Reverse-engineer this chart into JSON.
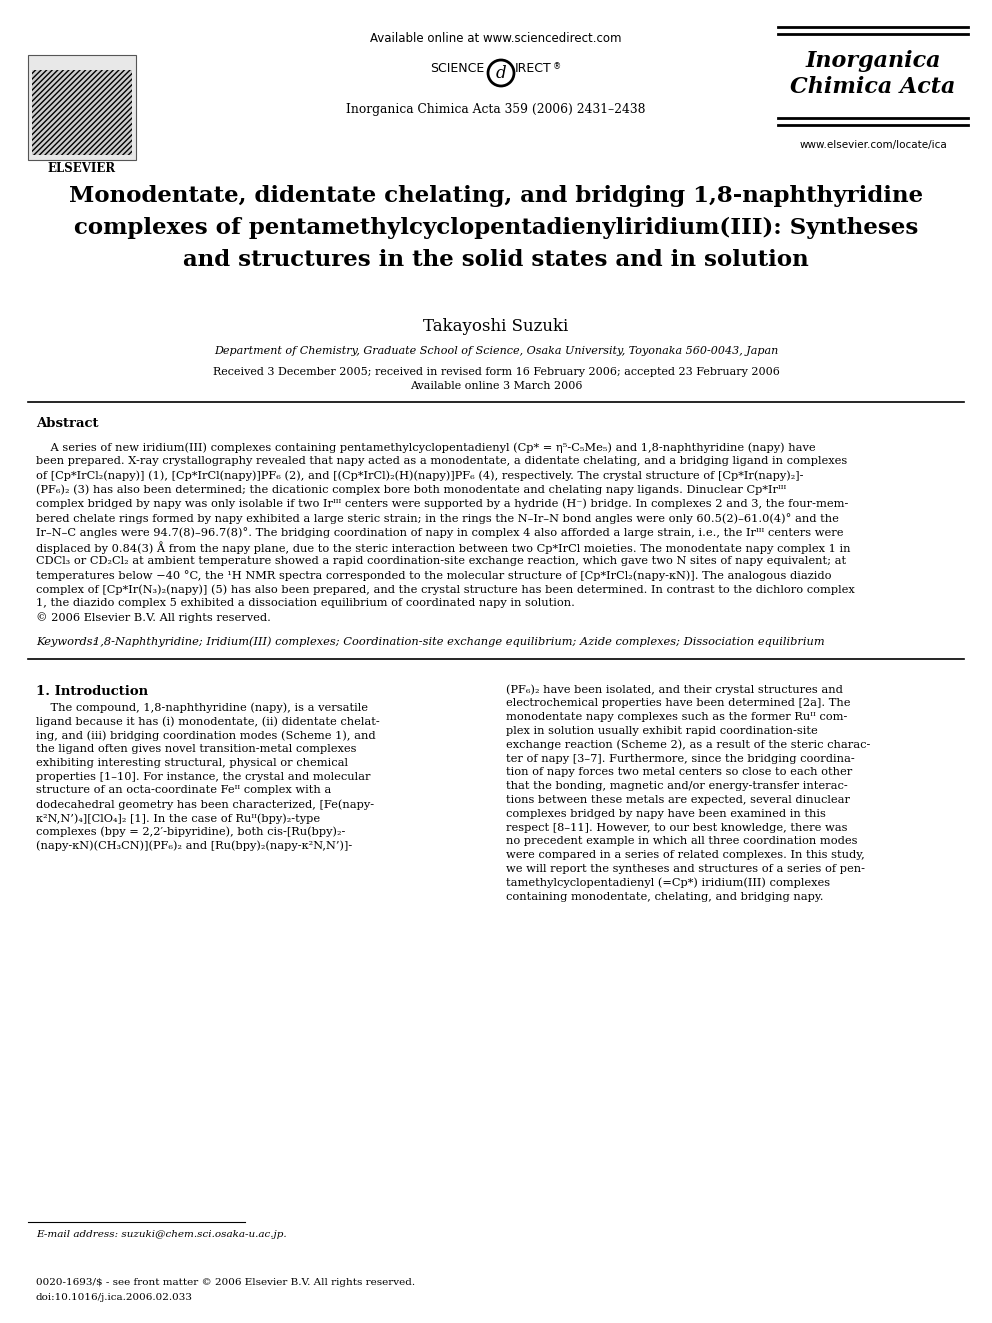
{
  "bg_color": "#ffffff",
  "header_available": "Available online at www.sciencedirect.com",
  "header_journal_ref": "Inorganica Chimica Acta 359 (2006) 2431–2438",
  "header_journal_name1": "Inorganica",
  "header_journal_name2": "Chimica Acta",
  "header_website": "www.elsevier.com/locate/ica",
  "title_line1": "Monodentate, didentate chelating, and bridging 1,8-naphthyridine",
  "title_line2": "complexes of pentamethylcyclopentadienyliridium(III): Syntheses",
  "title_line3": "and structures in the solid states and in solution",
  "author": "Takayoshi Suzuki",
  "affiliation": "Department of Chemistry, Graduate School of Science, Osaka University, Toyonaka 560-0043, Japan",
  "received": "Received 3 December 2005; received in revised form 16 February 2006; accepted 23 February 2006",
  "available_online": "Available online 3 March 2006",
  "abstract_header": "Abstract",
  "abstract_lines": [
    "    A series of new iridium(III) complexes containing pentamethylcyclopentadienyl (Cp* = η⁵-C₅Me₅) and 1,8-naphthyridine (napy) have",
    "been prepared. X-ray crystallography revealed that napy acted as a monodentate, a didentate chelating, and a bridging ligand in complexes",
    "of [Cp*IrCl₂(napy)] (1), [Cp*IrCl(napy)]PF₆ (2), and [(Cp*IrCl)₂(H)(napy)]PF₆ (4), respectively. The crystal structure of [Cp*Ir(napy)₂]-",
    "(PF₆)₂ (3) has also been determined; the dicationic complex bore both monodentate and chelating napy ligands. Dinuclear Cp*Irᴵᴵᴵ",
    "complex bridged by napy was only isolable if two Irᴵᴵᴵ centers were supported by a hydride (H⁻) bridge. In complexes 2 and 3, the four-mem-",
    "bered chelate rings formed by napy exhibited a large steric strain; in the rings the N–Ir–N bond angles were only 60.5(2)–61.0(4)° and the",
    "Ir–N–C angles were 94.7(8)–96.7(8)°. The bridging coordination of napy in complex 4 also afforded a large strain, i.e., the Irᴵᴵᴵ centers were",
    "displaced by 0.84(3) Å from the napy plane, due to the steric interaction between two Cp*IrCl moieties. The monodentate napy complex 1 in",
    "CDCl₃ or CD₂Cl₂ at ambient temperature showed a rapid coordination-site exchange reaction, which gave two N sites of napy equivalent; at",
    "temperatures below −40 °C, the ¹H NMR spectra corresponded to the molecular structure of [Cp*IrCl₂(napy-κN)]. The analogous diazido",
    "complex of [Cp*Ir(N₃)₂(napy)] (5) has also been prepared, and the crystal structure has been determined. In contrast to the dichloro complex",
    "1, the diazido complex 5 exhibited a dissociation equilibrium of coordinated napy in solution.",
    "© 2006 Elsevier B.V. All rights reserved."
  ],
  "keywords_label": "Keywords:",
  "keywords_text": "1,8-Naphthyridine; Iridium(III) complexes; Coordination-site exchange equilibrium; Azide complexes; Dissociation equilibrium",
  "section1_title": "1. Introduction",
  "left_col_lines": [
    "    The compound, 1,8-naphthyridine (napy), is a versatile",
    "ligand because it has (i) monodentate, (ii) didentate chelat-",
    "ing, and (iii) bridging coordination modes (Scheme 1), and",
    "the ligand often gives novel transition-metal complexes",
    "exhibiting interesting structural, physical or chemical",
    "properties [1–10]. For instance, the crystal and molecular",
    "structure of an octa-coordinate Feᴵᴵ complex with a",
    "dodecahedral geometry has been characterized, [Fe(napy-",
    "κ²N,N’)₄][ClO₄]₂ [1]. In the case of Ruᴵᴵ(bpy)₂-type",
    "complexes (bpy = 2,2′-bipyridine), both cis-[Ru(bpy)₂-",
    "(napy-κN)(CH₃CN)](PF₆)₂ and [Ru(bpy)₂(napy-κ²N,N’)]-"
  ],
  "right_col_line0": "(PF₆)₂ have been isolated, and their crystal structures and",
  "right_col_lines": [
    "electrochemical properties have been determined [2a]. The",
    "monodentate napy complexes such as the former Ruᴵᴵ com-",
    "plex in solution usually exhibit rapid coordination-site",
    "exchange reaction (Scheme 2), as a result of the steric charac-",
    "ter of napy [3–7]. Furthermore, since the bridging coordina-",
    "tion of napy forces two metal centers so close to each other",
    "that the bonding, magnetic and/or energy-transfer interac-",
    "tions between these metals are expected, several dinuclear",
    "complexes bridged by napy have been examined in this",
    "respect [8–11]. However, to our best knowledge, there was",
    "no precedent example in which all three coordination modes",
    "were compared in a series of related complexes. In this study,",
    "we will report the syntheses and structures of a series of pen-",
    "tamethylcyclopentadienyl (=Cp*) iridium(III) complexes",
    "containing monodentate, chelating, and bridging napy."
  ],
  "footnote": "E-mail address: suzuki@chem.sci.osaka-u.ac.jp.",
  "footer_line1": "0020-1693/$ - see front matter © 2006 Elsevier B.V. All rights reserved.",
  "footer_line2": "doi:10.1016/j.ica.2006.02.033"
}
